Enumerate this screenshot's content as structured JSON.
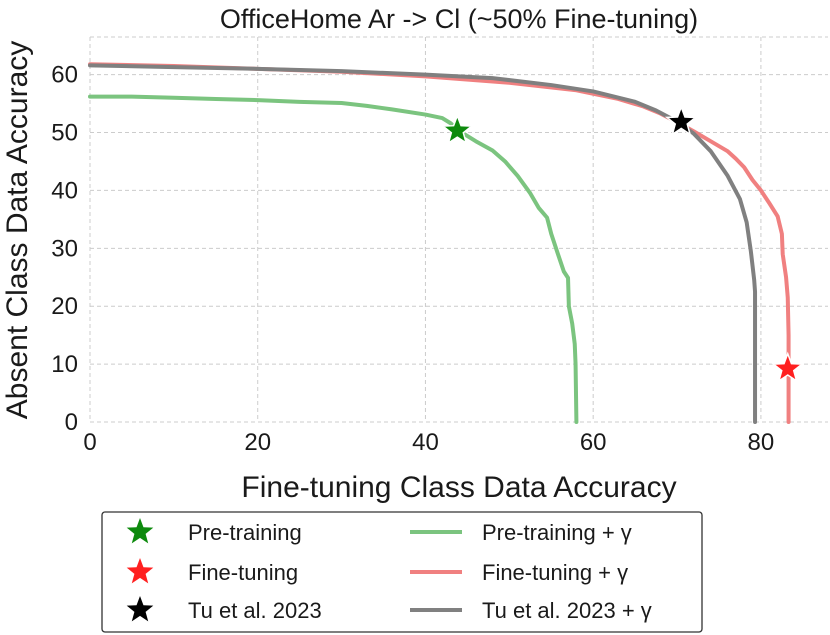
{
  "chart_data": {
    "type": "line",
    "title": "OfficeHome Ar -> Cl (~50% Fine-tuning)",
    "xlabel": "Fine-tuning Class Data Accuracy",
    "ylabel": "Absent Class Data Accuracy",
    "xlim": [
      0,
      88
    ],
    "ylim": [
      0,
      66.5
    ],
    "xticks": [
      0,
      20,
      40,
      60,
      80
    ],
    "yticks": [
      0,
      10,
      20,
      30,
      40,
      50,
      60
    ],
    "grid": true,
    "legend_placement": "below",
    "series": [
      {
        "name": "Pre-training + γ",
        "kind": "line",
        "color": "#7bc47f",
        "points": [
          [
            0,
            56.2
          ],
          [
            5,
            56.2
          ],
          [
            10,
            56.0
          ],
          [
            15,
            55.8
          ],
          [
            20,
            55.6
          ],
          [
            25,
            55.3
          ],
          [
            30,
            55.1
          ],
          [
            33,
            54.6
          ],
          [
            36,
            54.0
          ],
          [
            40,
            53.1
          ],
          [
            42,
            52.5
          ],
          [
            43,
            51.6
          ],
          [
            44,
            50.3
          ],
          [
            46,
            48.5
          ],
          [
            48,
            46.9
          ],
          [
            49.5,
            45.0
          ],
          [
            51,
            42.5
          ],
          [
            52.5,
            39.5
          ],
          [
            53.5,
            37.0
          ],
          [
            54.5,
            35.3
          ],
          [
            55,
            32.5
          ],
          [
            55.8,
            29.0
          ],
          [
            56.5,
            26.0
          ],
          [
            57,
            24.9
          ],
          [
            57.1,
            20.0
          ],
          [
            57.5,
            17.0
          ],
          [
            57.8,
            13.5
          ],
          [
            57.9,
            10.0
          ],
          [
            58,
            0
          ]
        ]
      },
      {
        "name": "Fine-tuning + γ",
        "kind": "line",
        "color": "#f08080",
        "points": [
          [
            0,
            61.8
          ],
          [
            10,
            61.5
          ],
          [
            20,
            61.0
          ],
          [
            30,
            60.5
          ],
          [
            40,
            59.7
          ],
          [
            50,
            58.6
          ],
          [
            58,
            57.3
          ],
          [
            63,
            55.8
          ],
          [
            66,
            54.5
          ],
          [
            68,
            53.3
          ],
          [
            70,
            51.8
          ],
          [
            72,
            50.2
          ],
          [
            74,
            48.5
          ],
          [
            76,
            46.8
          ],
          [
            77,
            45.5
          ],
          [
            78,
            44.0
          ],
          [
            79,
            41.8
          ],
          [
            80,
            40.0
          ],
          [
            81,
            37.8
          ],
          [
            82,
            35.5
          ],
          [
            82.5,
            32.5
          ],
          [
            82.6,
            29.0
          ],
          [
            83,
            25.0
          ],
          [
            83.2,
            21.5
          ],
          [
            83.3,
            15.0
          ],
          [
            83.3,
            9.5
          ],
          [
            83.3,
            0
          ]
        ]
      },
      {
        "name": "Tu et al. 2023 + γ",
        "kind": "line",
        "color": "#808080",
        "points": [
          [
            0,
            61.6
          ],
          [
            10,
            61.3
          ],
          [
            20,
            61.0
          ],
          [
            30,
            60.6
          ],
          [
            40,
            60.0
          ],
          [
            48,
            59.4
          ],
          [
            55,
            58.2
          ],
          [
            60,
            57.1
          ],
          [
            65,
            55.3
          ],
          [
            67.5,
            53.8
          ],
          [
            70,
            51.9
          ],
          [
            72,
            49.8
          ],
          [
            74,
            46.8
          ],
          [
            76,
            42.6
          ],
          [
            77.5,
            38.5
          ],
          [
            78.3,
            34.5
          ],
          [
            78.8,
            29.5
          ],
          [
            79.2,
            24.5
          ],
          [
            79.3,
            22.5
          ],
          [
            79.3,
            0
          ]
        ]
      },
      {
        "name": "Pre-training",
        "kind": "star",
        "color": "#0d8a0d",
        "points": [
          [
            43.8,
            50.3
          ]
        ]
      },
      {
        "name": "Fine-tuning",
        "kind": "star",
        "color": "#ff2020",
        "points": [
          [
            83.2,
            9.2
          ]
        ]
      },
      {
        "name": "Tu et al. 2023",
        "kind": "star",
        "color": "#000000",
        "points": [
          [
            70.5,
            51.8
          ]
        ]
      }
    ],
    "legend": [
      {
        "label": "Pre-training",
        "kind": "star",
        "color": "#0d8a0d"
      },
      {
        "label": "Pre-training + γ",
        "kind": "line",
        "color": "#7bc47f"
      },
      {
        "label": "Fine-tuning",
        "kind": "star",
        "color": "#ff2020"
      },
      {
        "label": "Fine-tuning + γ",
        "kind": "line",
        "color": "#f08080"
      },
      {
        "label": "Tu et al. 2023",
        "kind": "star",
        "color": "#000000"
      },
      {
        "label": "Tu et al. 2023 + γ",
        "kind": "line",
        "color": "#808080"
      }
    ]
  }
}
